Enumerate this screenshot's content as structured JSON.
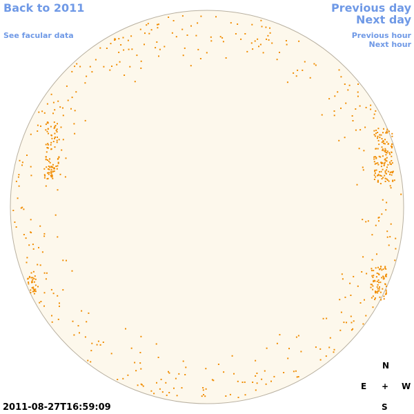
{
  "nav": {
    "back": "Back to 2011",
    "facular_data": "See facular data",
    "previous_day": "Previous day",
    "next_day": "Next day",
    "previous_hour": "Previous hour",
    "next_hour": "Next hour"
  },
  "timestamp": "2011-08-27T16:59:09",
  "compass": {
    "north": "N",
    "east": "E",
    "center": "+",
    "west": "W",
    "south": "S"
  }
}
